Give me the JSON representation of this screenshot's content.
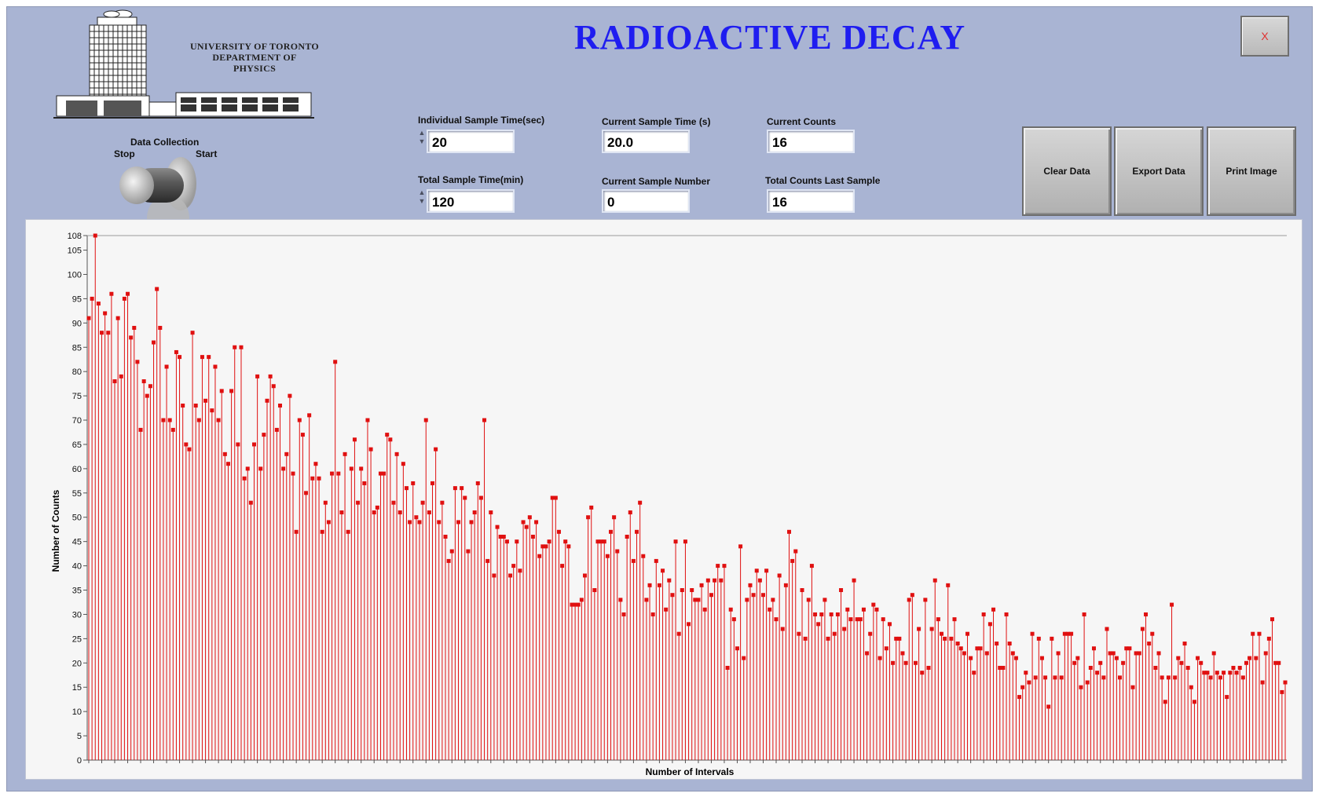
{
  "app": {
    "title": "RADIOACTIVE DECAY",
    "close_label": "X",
    "accent_color": "#1f1df0",
    "panel_color": "#a9b4d3"
  },
  "logo": {
    "line1": "UNIVERSITY OF TORONTO",
    "line2": "DEPARTMENT OF",
    "line3": "PHYSICS"
  },
  "switch": {
    "title": "Data Collection",
    "stop_label": "Stop",
    "start_label": "Start",
    "state": "Stop"
  },
  "controls": {
    "individual_sample_time": {
      "label": "Individual Sample Time(sec)",
      "value": "20"
    },
    "total_sample_time": {
      "label": "Total Sample Time(min)",
      "value": "120"
    },
    "current_sample_time": {
      "label": "Current Sample Time (s)",
      "value": "20.0"
    },
    "current_sample_number": {
      "label": "Current Sample Number",
      "value": "0"
    },
    "current_counts": {
      "label": "Current Counts",
      "value": "16"
    },
    "total_counts_last_sample": {
      "label": "Total Counts Last Sample",
      "value": "16"
    }
  },
  "buttons": {
    "clear": "Clear Data",
    "export": "Export Data",
    "print": "Print Image"
  },
  "chart_data": {
    "type": "bar",
    "style": "stem",
    "color": "#e01010",
    "xlabel": "Number of Intervals",
    "ylabel": "Number of Counts",
    "ylim": [
      0,
      108
    ],
    "yticks": [
      0,
      5,
      10,
      15,
      20,
      25,
      30,
      35,
      40,
      45,
      50,
      55,
      60,
      65,
      70,
      75,
      80,
      85,
      90,
      95,
      100,
      105,
      108
    ],
    "grid": false,
    "values": [
      91,
      95,
      108,
      94,
      88,
      92,
      88,
      96,
      78,
      91,
      79,
      95,
      96,
      87,
      89,
      82,
      68,
      78,
      75,
      77,
      86,
      97,
      89,
      70,
      81,
      70,
      68,
      84,
      83,
      73,
      65,
      64,
      88,
      73,
      70,
      83,
      74,
      83,
      72,
      81,
      70,
      76,
      63,
      61,
      76,
      85,
      65,
      85,
      58,
      60,
      53,
      65,
      79,
      60,
      67,
      74,
      79,
      77,
      68,
      73,
      60,
      63,
      75,
      59,
      47,
      70,
      67,
      55,
      71,
      58,
      61,
      58,
      47,
      53,
      49,
      59,
      82,
      59,
      51,
      63,
      47,
      60,
      66,
      53,
      60,
      57,
      70,
      64,
      51,
      52,
      59,
      59,
      67,
      66,
      53,
      63,
      51,
      61,
      56,
      49,
      57,
      50,
      49,
      53,
      70,
      51,
      57,
      64,
      49,
      53,
      46,
      41,
      43,
      56,
      49,
      56,
      54,
      43,
      49,
      51,
      57,
      54,
      70,
      41,
      51,
      38,
      48,
      46,
      46,
      45,
      38,
      40,
      45,
      39,
      49,
      48,
      50,
      46,
      49,
      42,
      44,
      44,
      45,
      54,
      54,
      47,
      40,
      45,
      44,
      32,
      32,
      32,
      33,
      38,
      50,
      52,
      35,
      45,
      45,
      45,
      42,
      47,
      50,
      43,
      33,
      30,
      46,
      51,
      41,
      47,
      53,
      42,
      33,
      36,
      30,
      41,
      36,
      39,
      31,
      37,
      34,
      45,
      26,
      35,
      45,
      28,
      35,
      33,
      33,
      36,
      31,
      37,
      34,
      37,
      40,
      37,
      40,
      19,
      31,
      29,
      23,
      44,
      21,
      33,
      36,
      34,
      39,
      37,
      34,
      39,
      31,
      33,
      29,
      38,
      27,
      36,
      47,
      41,
      43,
      26,
      35,
      25,
      33,
      40,
      30,
      28,
      30,
      33,
      25,
      30,
      26,
      30,
      35,
      27,
      31,
      29,
      37,
      29,
      29,
      31,
      22,
      26,
      32,
      31,
      21,
      29,
      23,
      28,
      20,
      25,
      25,
      22,
      20,
      33,
      34,
      20,
      27,
      18,
      33,
      19,
      27,
      37,
      29,
      26,
      25,
      36,
      25,
      29,
      24,
      23,
      22,
      26,
      21,
      18,
      23,
      23,
      30,
      22,
      28,
      31,
      24,
      19,
      19,
      30,
      24,
      22,
      21,
      13,
      15,
      18,
      16,
      26,
      17,
      25,
      21,
      17,
      11,
      25,
      17,
      22,
      17,
      26,
      26,
      26,
      20,
      21,
      15,
      30,
      16,
      19,
      23,
      18,
      20,
      17,
      27,
      22,
      22,
      21,
      17,
      20,
      23,
      23,
      15,
      22,
      22,
      27,
      30,
      24,
      26,
      19,
      22,
      17,
      12,
      17,
      32,
      17,
      21,
      20,
      24,
      19,
      15,
      12,
      21,
      20,
      18,
      18,
      17,
      22,
      18,
      17,
      18,
      13,
      18,
      19,
      18,
      19,
      17,
      20,
      21,
      26,
      21,
      26,
      16,
      22,
      25,
      29,
      20,
      20,
      14,
      16
    ],
    "panels": 1
  }
}
